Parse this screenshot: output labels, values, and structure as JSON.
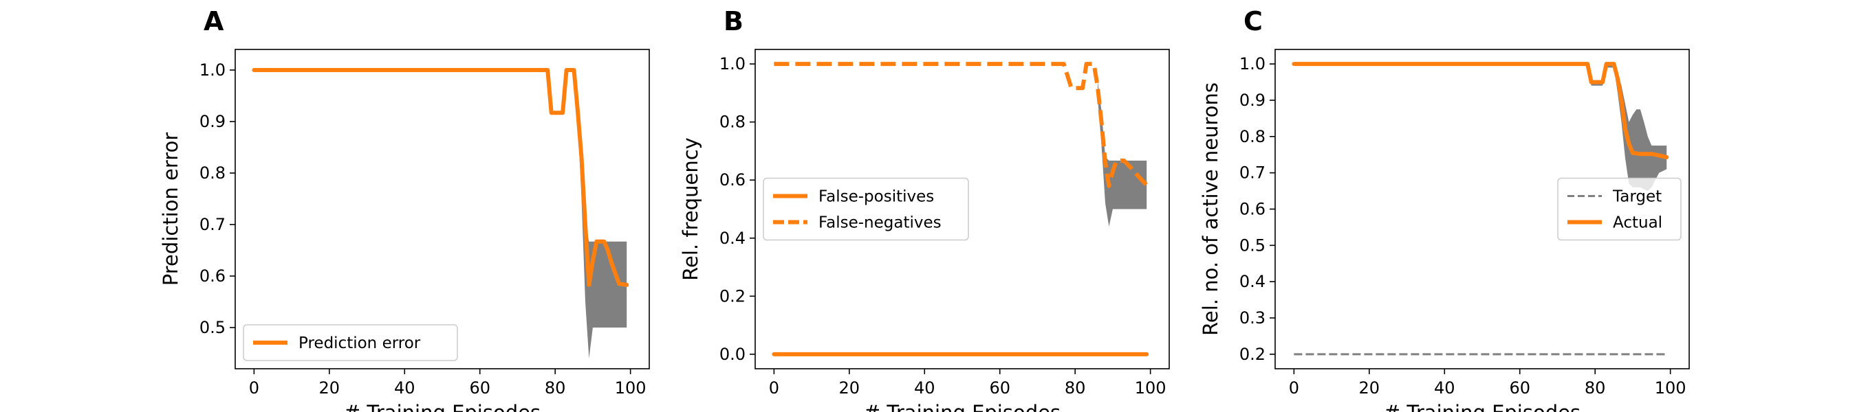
{
  "chart_data": [
    {
      "panel": "A",
      "type": "line",
      "xlabel": "# Training Episodes",
      "ylabel": "Prediction error",
      "xlim": [
        -5,
        105
      ],
      "ylim": [
        0.42,
        1.04
      ],
      "xticks": [
        0,
        20,
        40,
        60,
        80,
        100
      ],
      "yticks": [
        0.5,
        0.6,
        0.7,
        0.8,
        0.9,
        1.0
      ],
      "ytick_decimals": 1,
      "grid": false,
      "legend_position": "lower-left",
      "series": [
        {
          "name": "Prediction error",
          "style": "solid",
          "color": "#ff7f0e",
          "points": [
            [
              0,
              1.0
            ],
            [
              78,
              1.0
            ],
            [
              79,
              0.917
            ],
            [
              81,
              0.917
            ],
            [
              82,
              0.917
            ],
            [
              83,
              1.0
            ],
            [
              85,
              1.0
            ],
            [
              86,
              0.92
            ],
            [
              87,
              0.83
            ],
            [
              88,
              0.7
            ],
            [
              89,
              0.583
            ],
            [
              90,
              0.63
            ],
            [
              91,
              0.667
            ],
            [
              93,
              0.667
            ],
            [
              94,
              0.65
            ],
            [
              95,
              0.625
            ],
            [
              96,
              0.605
            ],
            [
              97,
              0.585
            ],
            [
              99,
              0.583
            ]
          ]
        }
      ],
      "bands": [
        {
          "color": "#808080",
          "x": [
            86,
            87,
            88,
            89,
            90,
            91,
            93,
            95,
            97,
            99
          ],
          "lower": [
            0.9,
            0.75,
            0.55,
            0.44,
            0.5,
            0.5,
            0.5,
            0.5,
            0.5,
            0.5
          ],
          "upper": [
            0.95,
            0.85,
            0.7,
            0.667,
            0.667,
            0.667,
            0.667,
            0.667,
            0.667,
            0.667
          ]
        }
      ]
    },
    {
      "panel": "B",
      "type": "line",
      "xlabel": "# Training Episodes",
      "ylabel": "Rel. frequency",
      "xlim": [
        -5,
        105
      ],
      "ylim": [
        -0.05,
        1.05
      ],
      "xticks": [
        0,
        20,
        40,
        60,
        80,
        100
      ],
      "yticks": [
        0.0,
        0.2,
        0.4,
        0.6,
        0.8,
        1.0
      ],
      "ytick_decimals": 1,
      "grid": false,
      "legend_position": "center-left",
      "series": [
        {
          "name": "False-positives",
          "style": "solid",
          "color": "#ff7f0e",
          "points": [
            [
              0,
              0.0
            ],
            [
              99,
              0.0
            ]
          ]
        },
        {
          "name": "False-negatives",
          "style": "dashed",
          "color": "#ff7f0e",
          "points": [
            [
              0,
              1.0
            ],
            [
              77,
              1.0
            ],
            [
              79,
              0.917
            ],
            [
              82,
              0.917
            ],
            [
              83,
              1.0
            ],
            [
              85,
              1.0
            ],
            [
              86,
              0.92
            ],
            [
              87,
              0.8
            ],
            [
              88,
              0.66
            ],
            [
              89,
              0.58
            ],
            [
              90,
              0.63
            ],
            [
              91,
              0.667
            ],
            [
              93,
              0.667
            ],
            [
              95,
              0.64
            ],
            [
              97,
              0.61
            ],
            [
              99,
              0.583
            ]
          ]
        }
      ],
      "bands": [
        {
          "color": "#808080",
          "x": [
            86,
            87,
            88,
            89,
            90,
            91,
            93,
            95,
            97,
            99
          ],
          "lower": [
            0.88,
            0.72,
            0.52,
            0.44,
            0.5,
            0.5,
            0.5,
            0.5,
            0.5,
            0.5
          ],
          "upper": [
            0.94,
            0.84,
            0.68,
            0.667,
            0.667,
            0.667,
            0.667,
            0.667,
            0.667,
            0.667
          ]
        }
      ]
    },
    {
      "panel": "C",
      "type": "line",
      "xlabel": "# Training Episodes",
      "ylabel": "Rel. no. of active neurons",
      "xlim": [
        -5,
        105
      ],
      "ylim": [
        0.16,
        1.04
      ],
      "xticks": [
        0,
        20,
        40,
        60,
        80,
        100
      ],
      "yticks": [
        0.2,
        0.3,
        0.4,
        0.5,
        0.6,
        0.7,
        0.8,
        0.9,
        1.0
      ],
      "ytick_decimals": 1,
      "grid": false,
      "legend_position": "center-right",
      "series": [
        {
          "name": "Target",
          "style": "dashed-thin",
          "color": "#808080",
          "points": [
            [
              0,
              0.2
            ],
            [
              99,
              0.2
            ]
          ]
        },
        {
          "name": "Actual",
          "style": "solid",
          "color": "#ff7f0e",
          "points": [
            [
              0,
              1.0
            ],
            [
              78,
              1.0
            ],
            [
              79,
              0.95
            ],
            [
              81,
              0.95
            ],
            [
              82,
              0.95
            ],
            [
              83,
              1.0
            ],
            [
              85,
              1.0
            ],
            [
              86,
              0.96
            ],
            [
              87,
              0.9
            ],
            [
              88,
              0.82
            ],
            [
              89,
              0.78
            ],
            [
              90,
              0.755
            ],
            [
              92,
              0.752
            ],
            [
              95,
              0.752
            ],
            [
              97,
              0.748
            ],
            [
              99,
              0.743
            ]
          ]
        }
      ],
      "bands": [
        {
          "color": "#808080",
          "x": [
            78,
            79,
            81,
            82,
            83,
            85,
            86,
            87,
            88,
            89,
            90,
            91,
            92,
            93,
            94,
            95,
            96,
            97,
            99
          ],
          "lower": [
            1.0,
            0.94,
            0.94,
            0.94,
            0.99,
            0.99,
            0.92,
            0.84,
            0.74,
            0.67,
            0.66,
            0.66,
            0.66,
            0.655,
            0.65,
            0.66,
            0.68,
            0.7,
            0.71
          ],
          "upper": [
            1.0,
            0.955,
            0.955,
            0.955,
            1.0,
            1.0,
            0.98,
            0.94,
            0.89,
            0.84,
            0.86,
            0.875,
            0.875,
            0.84,
            0.8,
            0.775,
            0.775,
            0.775,
            0.775
          ]
        }
      ]
    }
  ]
}
